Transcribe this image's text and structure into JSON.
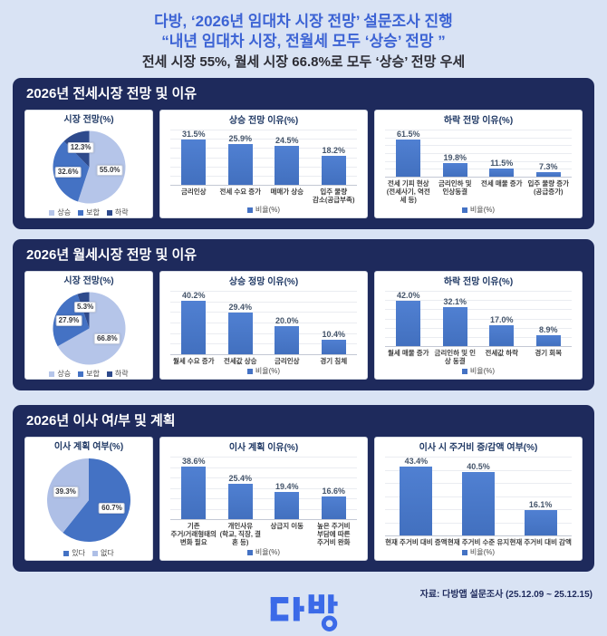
{
  "header": {
    "line1": "다방, ‘2026년 임대차 시장 전망’ 설문조사 진행",
    "line2": "“내년 임대차 시장, 전월세 모두 ‘상승’ 전망 ”",
    "line3": "전세 시장 55%, 월세 시장 66.8%로 모두 ‘상승’ 전망 우세"
  },
  "panels": [
    {
      "title": "2026년 전세시장 전망 및 이유",
      "charts": [
        0,
        1,
        2
      ]
    },
    {
      "title": "2026년 월세시장 전망 및 이유",
      "charts": [
        3,
        4,
        5
      ]
    },
    {
      "title": "2026년 이사 여/부 및 계획",
      "charts": [
        6,
        7,
        8
      ]
    }
  ],
  "chart_data": [
    {
      "type": "pie",
      "panel": "2026년 전세시장 전망 및 이유",
      "title": "시장 전망(%)",
      "labels": [
        "상승",
        "보합",
        "하락"
      ],
      "values": [
        55.0,
        32.6,
        12.3
      ],
      "value_labels": [
        "55.0%",
        "32.6%",
        "12.3%"
      ],
      "colors": [
        "#b5c5e9",
        "#4472c4",
        "#2e4a8c"
      ],
      "legend_position": "bottom"
    },
    {
      "type": "bar",
      "panel": "2026년 전세시장 전망 및 이유",
      "title": "상승 전망 이유(%)",
      "categories": [
        [
          "금리인상"
        ],
        [
          "전세 수요 증가"
        ],
        [
          "매매가 상승"
        ],
        [
          "입주 물량",
          "감소(공급부족)"
        ]
      ],
      "values": [
        31.5,
        25.9,
        24.5,
        18.2
      ],
      "value_labels": [
        "31.5%",
        "25.9%",
        "24.5%",
        "18.2%"
      ],
      "legend": "비율(%)",
      "ylim": [
        0,
        35
      ],
      "grid": true,
      "legend_position": "bottom"
    },
    {
      "type": "bar",
      "panel": "2026년 전세시장 전망 및 이유",
      "title": "하락 전망 이유(%)",
      "categories": [
        [
          "전세 기피 현상",
          "(전세사기, 역전세 등)"
        ],
        [
          "금리인하 및",
          "인상동결"
        ],
        [
          "전세 매물 증가"
        ],
        [
          "입주 물량 증가",
          "(공급증가)"
        ]
      ],
      "values": [
        61.5,
        19.8,
        11.5,
        7.3
      ],
      "value_labels": [
        "61.5%",
        "19.8%",
        "11.5%",
        "7.3%"
      ],
      "legend": "비율(%)",
      "ylim": [
        0,
        70
      ],
      "grid": true,
      "legend_position": "bottom"
    },
    {
      "type": "pie",
      "panel": "2026년 월세시장 전망 및 이유",
      "title": "시장 전망(%)",
      "labels": [
        "상승",
        "보합",
        "하락"
      ],
      "values": [
        66.8,
        27.9,
        5.3
      ],
      "value_labels": [
        "66.8%",
        "27.9%",
        "5.3%"
      ],
      "colors": [
        "#b5c5e9",
        "#4472c4",
        "#2e4a8c"
      ],
      "legend_position": "bottom"
    },
    {
      "type": "bar",
      "panel": "2026년 월세시장 전망 및 이유",
      "title": "상승 정망 이유(%)",
      "categories": [
        [
          "월세 수요 증가"
        ],
        [
          "전세값 상승"
        ],
        [
          "금리인상"
        ],
        [
          "경기 침체"
        ]
      ],
      "values": [
        40.2,
        29.4,
        20.0,
        10.4
      ],
      "value_labels": [
        "40.2%",
        "29.4%",
        "20.0%",
        "10.4%"
      ],
      "legend": "비율(%)",
      "ylim": [
        0,
        45
      ],
      "grid": true,
      "legend_position": "bottom"
    },
    {
      "type": "bar",
      "panel": "2026년 월세시장 전망 및 이유",
      "title": "하락 전망 이유(%)",
      "categories": [
        [
          "월세 매물 증가"
        ],
        [
          "금리인하 및 인상 동결"
        ],
        [
          "전세값 하락"
        ],
        [
          "경기 회복"
        ]
      ],
      "values": [
        42.0,
        32.1,
        17.0,
        8.9
      ],
      "value_labels": [
        "42.0%",
        "32.1%",
        "17.0%",
        "8.9%"
      ],
      "legend": "비율(%)",
      "ylim": [
        0,
        45
      ],
      "grid": true,
      "legend_position": "bottom"
    },
    {
      "type": "pie",
      "panel": "2026년 이사 여/부 및 계획",
      "title": "이사 계획 여부(%)",
      "labels": [
        "있다",
        "없다"
      ],
      "values": [
        60.7,
        39.3
      ],
      "value_labels": [
        "60.7%",
        "39.3%"
      ],
      "colors": [
        "#4472c4",
        "#aebfe6"
      ],
      "legend_position": "bottom"
    },
    {
      "type": "bar",
      "panel": "2026년 이사 여/부 및 계획",
      "title": "이사 계획 이유(%)",
      "categories": [
        [
          "기존",
          "주거/거래형태의",
          "변화 필요"
        ],
        [
          "개인사유",
          "(학교, 직장, 결혼 등)"
        ],
        [
          "상급지 이동"
        ],
        [
          "높은 주거비",
          "부담에 따른",
          "주거비 완화"
        ]
      ],
      "values": [
        38.6,
        25.4,
        19.4,
        16.6
      ],
      "value_labels": [
        "38.6%",
        "25.4%",
        "19.4%",
        "16.6%"
      ],
      "legend": "비율(%)",
      "ylim": [
        0,
        45
      ],
      "grid": true,
      "legend_position": "bottom"
    },
    {
      "type": "bar",
      "panel": "2026년 이사 여/부 및 계획",
      "title": "이사 시 주거비 증/감액 여부(%)",
      "categories": [
        [
          "현재 주거비 대비 증액"
        ],
        [
          "현재 주거비 수준 유지"
        ],
        [
          "현재 주거비 대비 감액"
        ]
      ],
      "values": [
        43.4,
        40.5,
        16.1
      ],
      "value_labels": [
        "43.4%",
        "40.5%",
        "16.1%"
      ],
      "legend": "비율(%)",
      "ylim": [
        0,
        50
      ],
      "grid": true,
      "legend_position": "bottom"
    }
  ],
  "footer": {
    "logo": "다방",
    "source": "자료: 다방앱 설문조사 (25.12.09 ~ 25.12.15)"
  },
  "colors": {
    "page_bg": "#d9e3f4",
    "panel_bg": "#1e2a5c",
    "headline_blue": "#3c63d4",
    "bar_blue": "#4472c4",
    "pie_three": [
      "#b5c5e9",
      "#4472c4",
      "#2e4a8c"
    ],
    "pie_two": [
      "#4472c4",
      "#aebfe6"
    ],
    "logo_blue": "#3b6ae8"
  }
}
